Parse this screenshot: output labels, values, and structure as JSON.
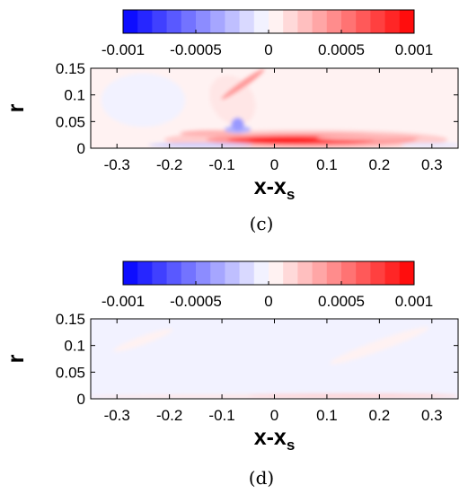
{
  "panels": [
    {
      "caption": "(c)",
      "colorbar": {
        "ticks": [
          "-0.001",
          "-0.0005",
          "0",
          "0.0005",
          "0.001"
        ]
      },
      "xlabel": "x-x",
      "xlabel_sub": "s",
      "ylabel": "r",
      "xticks": [
        "-0.3",
        "-0.2",
        "-0.1",
        "0",
        "0.1",
        "0.2",
        "0.3"
      ],
      "yticks": [
        "0",
        "0.05",
        "0.1",
        "0.15"
      ]
    },
    {
      "caption": "(d)",
      "colorbar": {
        "ticks": [
          "-0.001",
          "-0.0005",
          "0",
          "0.0005",
          "0.001"
        ]
      },
      "xlabel": "x-x",
      "xlabel_sub": "s",
      "ylabel": "r",
      "xticks": [
        "-0.3",
        "-0.2",
        "-0.1",
        "0",
        "0.1",
        "0.2",
        "0.3"
      ],
      "yticks": [
        "0",
        "0.05",
        "0.1",
        "0.15"
      ]
    }
  ],
  "chart_data": [
    {
      "type": "heatmap",
      "xlim": [
        -0.35,
        0.35
      ],
      "ylim": [
        0,
        0.15
      ],
      "color_range": [
        -0.001,
        0.001
      ],
      "colormap": {
        "low": "#0000ff",
        "mid": "#ffffff",
        "high": "#ff0000"
      },
      "colorbar_levels": [
        -0.001,
        -0.0009,
        -0.0008,
        -0.0007,
        -0.0006,
        -0.0005,
        -0.0004,
        -0.0003,
        -0.0002,
        -0.0001,
        0,
        0.0001,
        0.0002,
        0.0003,
        0.0004,
        0.0005,
        0.0006,
        0.0007,
        0.0008,
        0.0009,
        0.001
      ],
      "background_value": 5e-05,
      "features": [
        {
          "kind": "blob",
          "x": 0.06,
          "y": 0.016,
          "rx": 0.27,
          "ry": 0.018,
          "value": 0.0002
        },
        {
          "kind": "blob",
          "x": 0.07,
          "y": 0.016,
          "rx": 0.2,
          "ry": 0.012,
          "value": 0.0004
        },
        {
          "kind": "blob",
          "x": 0.05,
          "y": 0.015,
          "rx": 0.14,
          "ry": 0.008,
          "value": 0.0007
        },
        {
          "kind": "blob",
          "x": 0.02,
          "y": 0.015,
          "rx": 0.07,
          "ry": 0.005,
          "value": 0.0009
        },
        {
          "kind": "blob",
          "x": 0.18,
          "y": 0.02,
          "rx": 0.1,
          "ry": 0.005,
          "value": 0.0003
        },
        {
          "kind": "blob",
          "x": -0.12,
          "y": 0.028,
          "rx": 0.06,
          "ry": 0.006,
          "value": 0.0003
        },
        {
          "kind": "blob",
          "x": -0.08,
          "y": 0.09,
          "rx": 0.04,
          "ry": 0.05,
          "angle": 35,
          "value": 0.0001
        },
        {
          "kind": "blob",
          "x": -0.06,
          "y": 0.12,
          "rx": 0.05,
          "ry": 0.006,
          "angle": 35,
          "value": 0.0004
        },
        {
          "kind": "blob",
          "x": -0.07,
          "y": 0.035,
          "rx": 0.025,
          "ry": 0.007,
          "value": -0.0003
        },
        {
          "kind": "blob",
          "x": -0.07,
          "y": 0.045,
          "rx": 0.012,
          "ry": 0.012,
          "value": -0.0004
        },
        {
          "kind": "blob",
          "x": -0.14,
          "y": 0.006,
          "rx": 0.1,
          "ry": 0.004,
          "value": -0.0002
        },
        {
          "kind": "blob",
          "x": 0.3,
          "y": 0.006,
          "rx": 0.06,
          "ry": 0.004,
          "value": -0.0001
        },
        {
          "kind": "blob",
          "x": -0.25,
          "y": 0.09,
          "rx": 0.08,
          "ry": 0.05,
          "value": -5e-05
        }
      ]
    },
    {
      "type": "heatmap",
      "xlim": [
        -0.35,
        0.35
      ],
      "ylim": [
        0,
        0.15
      ],
      "color_range": [
        -0.001,
        0.001
      ],
      "colormap": {
        "low": "#0000ff",
        "mid": "#ffffff",
        "high": "#ff0000"
      },
      "colorbar_levels": [
        -0.001,
        -0.0009,
        -0.0008,
        -0.0007,
        -0.0006,
        -0.0005,
        -0.0004,
        -0.0003,
        -0.0002,
        -0.0001,
        0,
        0.0001,
        0.0002,
        0.0003,
        0.0004,
        0.0005,
        0.0006,
        0.0007,
        0.0008,
        0.0009,
        0.001
      ],
      "background_value": -5e-05,
      "features": [
        {
          "kind": "blob",
          "x": 0.0,
          "y": 0.004,
          "rx": 0.36,
          "ry": 0.004,
          "value": 0.0001
        },
        {
          "kind": "blob",
          "x": 0.15,
          "y": 0.006,
          "rx": 0.2,
          "ry": 0.003,
          "value": 0.0002
        },
        {
          "kind": "blob",
          "x": -0.25,
          "y": 0.11,
          "rx": 0.06,
          "ry": 0.008,
          "angle": 20,
          "value": 5e-05
        },
        {
          "kind": "blob",
          "x": 0.2,
          "y": 0.1,
          "rx": 0.1,
          "ry": 0.01,
          "angle": 20,
          "value": 5e-05
        }
      ]
    }
  ]
}
